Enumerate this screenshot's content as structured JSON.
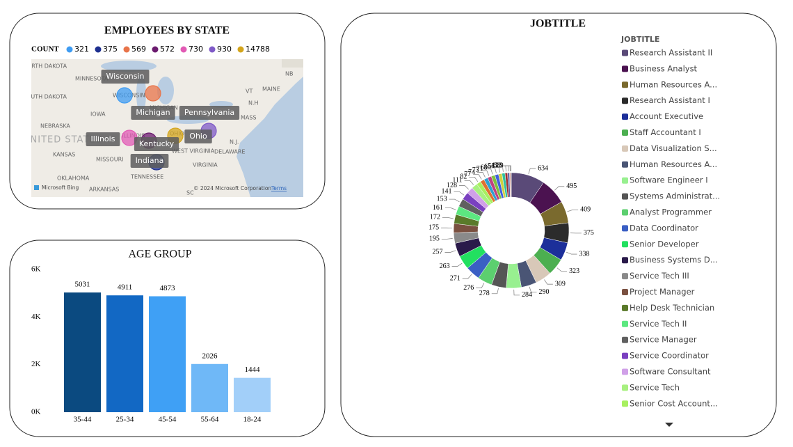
{
  "chart_data": [
    {
      "type": "map",
      "title": "EMPLOYEES BY STATE",
      "legend_title": "COUNT",
      "points": [
        {
          "state": "Wisconsin",
          "value": 321,
          "color": "#3f9cf2"
        },
        {
          "state": "Indiana",
          "value": 375,
          "color": "#1d2f8f"
        },
        {
          "state": "Michigan",
          "value": 569,
          "color": "#e8744a"
        },
        {
          "state": "Kentucky",
          "value": 572,
          "color": "#6b1b6f"
        },
        {
          "state": "Illinois",
          "value": 730,
          "color": "#e25bb5"
        },
        {
          "state": "Pennsylvania",
          "value": 930,
          "color": "#7f5ac7"
        },
        {
          "state": "Ohio",
          "value": 14788,
          "color": "#d4a51c"
        }
      ],
      "map_labels": [
        "NORTH DAKOTA",
        "MINNESOTA",
        "SOUTH DAKOTA",
        "IOWA",
        "NEBRASKA",
        "UNITED STATES",
        "KANSAS",
        "MISSOURI",
        "OKLAHOMA",
        "ARKANSAS",
        "TENNESSEE",
        "WEST VIRGINIA",
        "VIRGINIA",
        "DELAWARE",
        "MAINE",
        "NB",
        "VT",
        "N.H",
        "MASS",
        "N.J.",
        "SC",
        "WISCONSIN",
        "MICHIGAN",
        "OHIO",
        "ILLINOIS"
      ],
      "attribution": [
        "Microsoft Bing",
        "© 2024 Microsoft Corporation",
        "Terms"
      ]
    },
    {
      "type": "bar",
      "title": "AGE GROUP",
      "categories": [
        "35-44",
        "25-34",
        "45-54",
        "55-64",
        "18-24"
      ],
      "values": [
        5031,
        4911,
        4873,
        2026,
        1444
      ],
      "colors": [
        "#0b4a80",
        "#1268c4",
        "#3fa0f5",
        "#6fb8f7",
        "#a2cff9"
      ],
      "ylim": [
        0,
        6000
      ],
      "yticks": [
        {
          "value": 0,
          "label": "0K"
        },
        {
          "value": 2000,
          "label": "2K"
        },
        {
          "value": 4000,
          "label": "4K"
        },
        {
          "value": 6000,
          "label": "6K"
        }
      ]
    },
    {
      "type": "donut",
      "title": "JOBTITLE",
      "legend_title": "JOBTITLE",
      "categories": [
        "Research Assistant II",
        "Business Analyst",
        "Human Resources A...",
        "Research Assistant I",
        "Account Executive",
        "Staff Accountant I",
        "Data Visualization S...",
        "Human Resources A...",
        "Software Engineer I",
        "Systems Administrat...",
        "Analyst Programmer",
        "Data Coordinator",
        "Senior Developer",
        "Business Systems D...",
        "Service Tech III",
        "Project Manager",
        "Help Desk Technician",
        "Service Tech II",
        "Service Manager",
        "Service Coordinator",
        "Software Consultant",
        "Service Tech",
        "Senior Cost Account...",
        null,
        null,
        null,
        null,
        null,
        null,
        null,
        null,
        null,
        null,
        null
      ],
      "values": [
        634,
        495,
        409,
        375,
        338,
        323,
        309,
        290,
        284,
        278,
        276,
        271,
        263,
        257,
        195,
        175,
        172,
        161,
        153,
        141,
        128,
        111,
        82,
        77,
        74,
        73,
        71,
        68,
        65,
        58,
        47,
        38,
        23,
        9
      ],
      "colors": [
        "#5a4a78",
        "#4b1250",
        "#7a6a2e",
        "#2b2b2b",
        "#1c2f9a",
        "#4caf50",
        "#d8c8b8",
        "#4a5575",
        "#98f090",
        "#555555",
        "#5ccf6f",
        "#3a5fc4",
        "#22e060",
        "#2a1a4a",
        "#8a8a8a",
        "#7a5040",
        "#5a7a2a",
        "#5ce880",
        "#606060",
        "#7a40c0",
        "#d0a0e8",
        "#a8f080",
        "#a8f060",
        "#e07030",
        "#30a0d0",
        "#c04080",
        "#80c040",
        "#4060e0",
        "#d0d040",
        "#30c0a0",
        "#a03030",
        "#6060a0",
        "#e0a0a0",
        "#208050"
      ]
    }
  ]
}
